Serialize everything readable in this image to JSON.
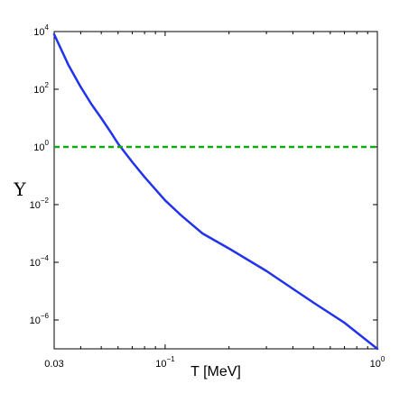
{
  "chart_data": {
    "type": "line",
    "title": "",
    "xlabel": "T [MeV]",
    "ylabel": "Υ",
    "x_scale": "log",
    "y_scale": "log",
    "xlim": [
      0.03,
      1.0
    ],
    "ylim": [
      1e-07,
      10000.0
    ],
    "grid": false,
    "x_ticks": [
      {
        "value": 0.03,
        "base": "0.03",
        "exp": ""
      },
      {
        "value": 0.1,
        "base": "10",
        "exp": "−1"
      },
      {
        "value": 1.0,
        "base": "10",
        "exp": "0"
      }
    ],
    "y_ticks": [
      {
        "value": 10000.0,
        "base": "10",
        "exp": "4"
      },
      {
        "value": 100.0,
        "base": "10",
        "exp": "2"
      },
      {
        "value": 1.0,
        "base": "10",
        "exp": "0"
      },
      {
        "value": 0.01,
        "base": "10",
        "exp": "−2"
      },
      {
        "value": 0.0001,
        "base": "10",
        "exp": "−4"
      },
      {
        "value": 1e-06,
        "base": "10",
        "exp": "−6"
      }
    ],
    "series": [
      {
        "style": "solid",
        "color": "#2233ee",
        "x": [
          0.03,
          0.035,
          0.04,
          0.045,
          0.05,
          0.055,
          0.06,
          0.07,
          0.08,
          0.1,
          0.12,
          0.15,
          0.2,
          0.3,
          0.5,
          0.7,
          1.0
        ],
        "y": [
          8000,
          700,
          120,
          30,
          10,
          3.5,
          1.3,
          0.3,
          0.09,
          0.014,
          0.004,
          0.001,
          0.0003,
          5e-05,
          4e-06,
          8e-07,
          1e-07
        ]
      },
      {
        "style": "dashed",
        "color": "#11aa11",
        "x": [
          0.03,
          1.0
        ],
        "y": [
          1,
          1
        ]
      }
    ]
  }
}
